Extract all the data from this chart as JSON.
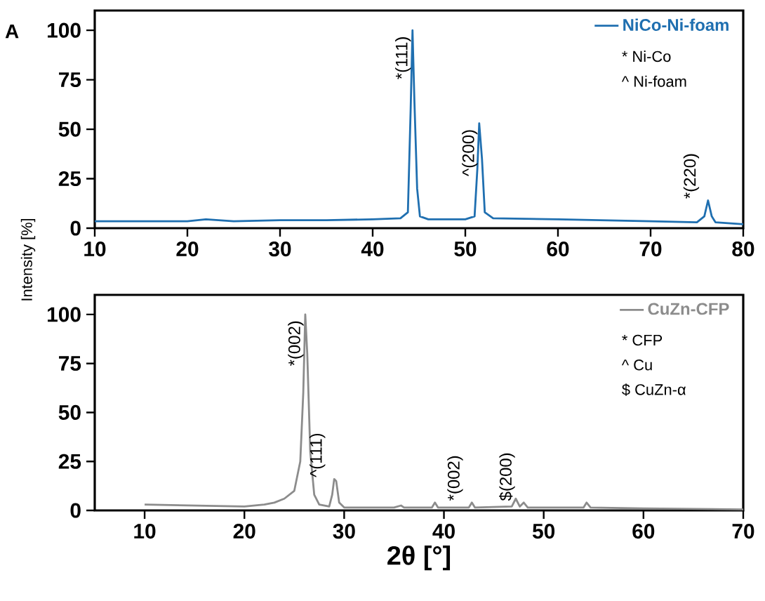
{
  "chart_data": [
    {
      "type": "line",
      "title": "A",
      "ylabel": "Intensity [%]",
      "xlim": [
        10,
        80
      ],
      "ylim": [
        0,
        110
      ],
      "xticks": [
        10,
        20,
        30,
        40,
        50,
        60,
        70,
        80
      ],
      "yticks": [
        0,
        25,
        50,
        75,
        100
      ],
      "legend": "top right",
      "series": [
        {
          "name": "NiCo-Ni-foam",
          "color": "#1f6fb0",
          "x": [
            10,
            15,
            20,
            22,
            25,
            30,
            35,
            40,
            43,
            43.8,
            44.1,
            44.3,
            44.5,
            44.8,
            45.1,
            46,
            50,
            51,
            51.3,
            51.5,
            51.8,
            52.1,
            53,
            60,
            70,
            75,
            75.8,
            76.2,
            76.6,
            77,
            80
          ],
          "values": [
            3.5,
            3.5,
            3.5,
            4.5,
            3.5,
            4,
            4,
            4.5,
            5,
            8,
            60,
            100,
            65,
            20,
            6,
            4.5,
            4.5,
            6,
            30,
            53,
            35,
            8,
            5,
            4.5,
            3.5,
            3,
            6,
            14,
            6,
            3,
            2
          ]
        }
      ],
      "annotations": [
        "* Ni-Co",
        "^ Ni-foam",
        {
          "text": "*(111)",
          "x": 44.3,
          "y": 100
        },
        {
          "text": "^(200)",
          "x": 51.5,
          "y": 53
        },
        {
          "text": "*(220)",
          "x": 76.2,
          "y": 14
        }
      ]
    },
    {
      "type": "line",
      "xlabel": "2θ [°]",
      "xlim": [
        5,
        70
      ],
      "ylim": [
        0,
        110
      ],
      "xticks": [
        10,
        20,
        30,
        40,
        50,
        60,
        70
      ],
      "yticks": [
        0,
        25,
        50,
        75,
        100
      ],
      "legend": "top right",
      "series": [
        {
          "name": "CuZn-CFP",
          "color": "#8c8c8c",
          "x": [
            10,
            15,
            20,
            22,
            23,
            24,
            25,
            25.6,
            25.9,
            26.1,
            26.3,
            26.6,
            27,
            27.5,
            28.5,
            28.8,
            29,
            29.2,
            29.5,
            30,
            35,
            35.7,
            36,
            38.8,
            39.1,
            39.4,
            42.5,
            42.8,
            43.1,
            46.8,
            47.2,
            47.6,
            48,
            48.4,
            54,
            54.3,
            54.7,
            60,
            70
          ],
          "values": [
            3,
            2.5,
            2,
            3,
            4,
            6,
            10,
            25,
            60,
            100,
            80,
            30,
            8,
            3,
            2,
            8,
            16,
            15,
            4,
            1.5,
            1.5,
            2.5,
            1.5,
            1.5,
            4,
            1.5,
            1.5,
            4,
            1.5,
            2,
            6,
            2,
            4,
            1.5,
            1.5,
            4,
            1.5,
            1,
            0.5
          ]
        }
      ],
      "annotations": [
        "* CFP",
        "^ Cu",
        "$ CuZn-α",
        {
          "text": "*(002)",
          "x": 26.1,
          "y": 100
        },
        {
          "text": "^(111)",
          "x": 29,
          "y": 16
        },
        {
          "text": "*(002)",
          "x": 42.8,
          "y": 4
        },
        {
          "text": "$(200)",
          "x": 48,
          "y": 4
        }
      ]
    }
  ]
}
